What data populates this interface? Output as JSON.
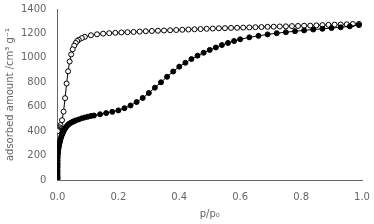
{
  "chart_data": {
    "type": "line",
    "xlabel": "p/p₀",
    "ylabel": "adsorbed amount /cm³ g⁻¹",
    "xlim": [
      0.0,
      1.0
    ],
    "ylim": [
      0,
      1400
    ],
    "xticks": [
      {
        "value": 0.0,
        "label": "0.0"
      },
      0.2,
      0.4,
      0.6,
      0.8,
      {
        "value": 1.0,
        "label": "1.0"
      }
    ],
    "yticks": [
      0,
      200,
      400,
      600,
      800,
      1000,
      1200,
      1400
    ],
    "grid": false,
    "series": [
      {
        "color": "#000000",
        "marker": "circle",
        "line_style": "solid",
        "x": [
          5e-06,
          1e-05,
          2e-05,
          4e-05,
          7e-05,
          0.0001,
          0.00015,
          0.0002,
          0.0003,
          0.0004,
          0.0005,
          0.0007,
          0.001,
          0.0015,
          0.002,
          0.003,
          0.004,
          0.005,
          0.006,
          0.007,
          0.008,
          0.009,
          0.01,
          0.012,
          0.014,
          0.016,
          0.018,
          0.02,
          0.022,
          0.025,
          0.028,
          0.032,
          0.036,
          0.04,
          0.045,
          0.05,
          0.055,
          0.06,
          0.07,
          0.08,
          0.09,
          0.1,
          0.11,
          0.12,
          0.14,
          0.16,
          0.18,
          0.2,
          0.22,
          0.24,
          0.26,
          0.28,
          0.3,
          0.32,
          0.34,
          0.36,
          0.38,
          0.4,
          0.42,
          0.44,
          0.46,
          0.48,
          0.5,
          0.52,
          0.54,
          0.56,
          0.58,
          0.6,
          0.63,
          0.66,
          0.69,
          0.72,
          0.75,
          0.78,
          0.81,
          0.84,
          0.87,
          0.9,
          0.93,
          0.96,
          0.99
        ],
        "values": [
          8,
          12,
          18,
          28,
          40,
          55,
          70,
          85,
          105,
          120,
          138,
          160,
          185,
          210,
          228,
          252,
          268,
          282,
          294,
          306,
          316,
          325,
          335,
          350,
          365,
          378,
          390,
          400,
          410,
          422,
          432,
          445,
          455,
          462,
          470,
          476,
          482,
          488,
          496,
          505,
          512,
          518,
          524,
          528,
          538,
          548,
          558,
          570,
          588,
          610,
          638,
          672,
          712,
          756,
          800,
          845,
          888,
          928,
          960,
          990,
          1018,
          1042,
          1065,
          1085,
          1105,
          1122,
          1138,
          1152,
          1168,
          1180,
          1192,
          1202,
          1210,
          1218,
          1225,
          1232,
          1238,
          1244,
          1250,
          1258,
          1268
        ]
      },
      {
        "color": "#000000",
        "marker": "open-circle",
        "line_style": "solid",
        "x": [
          0.99,
          0.97,
          0.95,
          0.93,
          0.91,
          0.89,
          0.87,
          0.85,
          0.83,
          0.81,
          0.79,
          0.77,
          0.75,
          0.73,
          0.71,
          0.69,
          0.67,
          0.65,
          0.63,
          0.61,
          0.59,
          0.57,
          0.55,
          0.53,
          0.51,
          0.49,
          0.47,
          0.45,
          0.43,
          0.41,
          0.39,
          0.37,
          0.35,
          0.33,
          0.31,
          0.29,
          0.27,
          0.25,
          0.23,
          0.21,
          0.19,
          0.17,
          0.15,
          0.13,
          0.11,
          0.09,
          0.08,
          0.07,
          0.065,
          0.06,
          0.055,
          0.05,
          0.045,
          0.04,
          0.035,
          0.03,
          0.025,
          0.02,
          0.015,
          0.01,
          0.007,
          0.005,
          0.003,
          0.002,
          0.001
        ],
        "values": [
          1278,
          1277,
          1275,
          1273,
          1272,
          1270,
          1268,
          1266,
          1264,
          1263,
          1261,
          1260,
          1258,
          1257,
          1255,
          1254,
          1252,
          1251,
          1249,
          1248,
          1246,
          1245,
          1243,
          1242,
          1240,
          1238,
          1236,
          1234,
          1232,
          1230,
          1228,
          1226,
          1224,
          1222,
          1220,
          1218,
          1215,
          1212,
          1210,
          1208,
          1205,
          1202,
          1198,
          1193,
          1185,
          1172,
          1162,
          1148,
          1138,
          1122,
          1100,
          1070,
          1028,
          970,
          890,
          790,
          670,
          560,
          490,
          450,
          432,
          422,
          412,
          406,
          400
        ]
      }
    ]
  }
}
